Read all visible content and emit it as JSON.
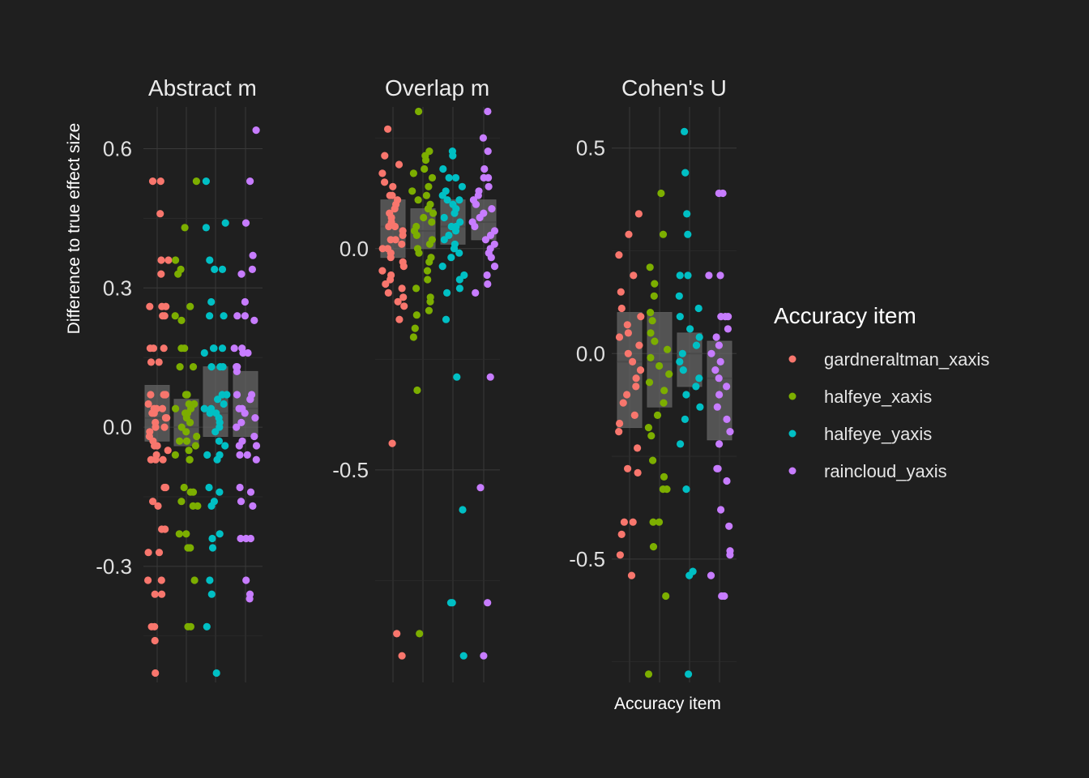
{
  "chart_data": {
    "type": "scatter",
    "subtype": "jittered points over boxplots, faceted",
    "background": "#1f1f1f",
    "grid": true,
    "x_title": "Accuracy item",
    "y_title": "Difference to true effect size",
    "legend": {
      "title": "Accuracy item",
      "position": "right",
      "entries": [
        {
          "label": "gardneraltman_xaxis",
          "color": "#F8766D"
        },
        {
          "label": "halfeye_xaxis",
          "color": "#7CAE00"
        },
        {
          "label": "halfeye_yaxis",
          "color": "#00BFC4"
        },
        {
          "label": "raincloud_yaxis",
          "color": "#C77CFF"
        }
      ]
    },
    "facets": [
      {
        "title": "Abstract m",
        "ylim": [
          -0.55,
          0.69
        ],
        "yticks": [
          -0.3,
          0.0,
          0.3,
          0.6
        ],
        "ytick_labels": [
          "-0.3",
          "0.0",
          "0.3",
          "0.6"
        ],
        "boxes": [
          {
            "series": "gardneraltman_xaxis",
            "q1": -0.03,
            "median": 0.02,
            "q3": 0.09
          },
          {
            "series": "halfeye_xaxis",
            "q1": -0.04,
            "median": 0.0,
            "q3": 0.06
          },
          {
            "series": "halfeye_yaxis",
            "q1": -0.02,
            "median": 0.03,
            "q3": 0.13
          },
          {
            "series": "raincloud_yaxis",
            "q1": -0.02,
            "median": 0.04,
            "q3": 0.12
          }
        ],
        "series": [
          {
            "name": "gardneraltman_xaxis",
            "values": [
              0.53,
              0.53,
              0.46,
              0.36,
              0.36,
              0.33,
              0.26,
              0.26,
              0.26,
              0.24,
              0.24,
              0.17,
              0.17,
              0.17,
              0.14,
              0.14,
              0.07,
              0.07,
              0.07,
              0.07,
              0.05,
              0.04,
              0.04,
              0.04,
              0.03,
              0.03,
              0.02,
              0.02,
              0.01,
              0.0,
              0.0,
              -0.01,
              -0.02,
              -0.03,
              -0.04,
              -0.04,
              -0.05,
              -0.06,
              -0.07,
              -0.07,
              -0.07,
              -0.13,
              -0.13,
              -0.16,
              -0.17,
              -0.22,
              -0.22,
              -0.27,
              -0.27,
              -0.33,
              -0.33,
              -0.36,
              -0.36,
              -0.43,
              -0.43,
              -0.46,
              -0.53
            ]
          },
          {
            "name": "halfeye_xaxis",
            "values": [
              0.53,
              0.43,
              0.36,
              0.34,
              0.33,
              0.26,
              0.24,
              0.23,
              0.17,
              0.17,
              0.13,
              0.13,
              0.07,
              0.07,
              0.05,
              0.05,
              0.04,
              0.04,
              0.03,
              0.03,
              0.02,
              0.01,
              0.0,
              -0.01,
              -0.02,
              -0.03,
              -0.03,
              -0.04,
              -0.05,
              -0.06,
              -0.07,
              -0.07,
              -0.13,
              -0.14,
              -0.14,
              -0.16,
              -0.17,
              -0.17,
              -0.23,
              -0.23,
              -0.26,
              -0.26,
              -0.33,
              -0.43,
              -0.43
            ]
          },
          {
            "name": "halfeye_yaxis",
            "values": [
              0.53,
              0.44,
              0.43,
              0.36,
              0.34,
              0.34,
              0.27,
              0.24,
              0.24,
              0.17,
              0.17,
              0.17,
              0.16,
              0.13,
              0.13,
              0.13,
              0.07,
              0.07,
              0.06,
              0.05,
              0.04,
              0.04,
              0.03,
              0.03,
              0.02,
              0.01,
              0.0,
              -0.01,
              -0.03,
              -0.04,
              -0.06,
              -0.06,
              -0.07,
              -0.13,
              -0.14,
              -0.16,
              -0.17,
              -0.23,
              -0.24,
              -0.26,
              -0.33,
              -0.36,
              -0.43,
              -0.53
            ]
          },
          {
            "name": "raincloud_yaxis",
            "values": [
              0.64,
              0.53,
              0.44,
              0.37,
              0.34,
              0.33,
              0.27,
              0.24,
              0.24,
              0.23,
              0.17,
              0.17,
              0.16,
              0.16,
              0.13,
              0.13,
              0.12,
              0.07,
              0.07,
              0.06,
              0.06,
              0.04,
              0.04,
              0.03,
              0.02,
              0.01,
              0.0,
              -0.02,
              -0.03,
              -0.04,
              -0.04,
              -0.06,
              -0.06,
              -0.07,
              -0.13,
              -0.14,
              -0.16,
              -0.17,
              -0.24,
              -0.24,
              -0.24,
              -0.33,
              -0.36,
              -0.37
            ]
          }
        ]
      },
      {
        "title": "Overlap m",
        "ylim": [
          -0.98,
          0.32
        ],
        "yticks": [
          -0.5,
          0.0
        ],
        "ytick_labels": [
          "-0.5",
          "0.0"
        ],
        "boxes": [
          {
            "series": "gardneraltman_xaxis",
            "q1": -0.02,
            "median": 0.05,
            "q3": 0.11
          },
          {
            "series": "halfeye_xaxis",
            "q1": 0.0,
            "median": 0.04,
            "q3": 0.09
          },
          {
            "series": "halfeye_yaxis",
            "q1": 0.01,
            "median": 0.05,
            "q3": 0.11
          },
          {
            "series": "raincloud_yaxis",
            "q1": 0.02,
            "median": 0.06,
            "q3": 0.11
          }
        ],
        "series": [
          {
            "name": "gardneraltman_xaxis",
            "values": [
              0.27,
              0.21,
              0.19,
              0.17,
              0.15,
              0.14,
              0.12,
              0.12,
              0.11,
              0.1,
              0.09,
              0.08,
              0.07,
              0.06,
              0.05,
              0.05,
              0.04,
              0.03,
              0.02,
              0.02,
              0.01,
              0.0,
              0.0,
              -0.01,
              -0.02,
              -0.03,
              -0.04,
              -0.05,
              -0.06,
              -0.07,
              -0.08,
              -0.09,
              -0.1,
              -0.11,
              -0.12,
              -0.13,
              -0.16,
              -0.44,
              -0.87,
              -0.92
            ]
          },
          {
            "name": "halfeye_xaxis",
            "values": [
              0.31,
              0.22,
              0.21,
              0.2,
              0.18,
              0.17,
              0.16,
              0.14,
              0.13,
              0.12,
              0.11,
              0.1,
              0.09,
              0.08,
              0.07,
              0.06,
              0.05,
              0.04,
              0.03,
              0.02,
              0.01,
              0.0,
              -0.01,
              -0.02,
              -0.03,
              -0.05,
              -0.07,
              -0.09,
              -0.11,
              -0.12,
              -0.14,
              -0.15,
              -0.18,
              -0.2,
              -0.32,
              -0.87
            ]
          },
          {
            "name": "halfeye_yaxis",
            "values": [
              0.22,
              0.21,
              0.18,
              0.16,
              0.16,
              0.14,
              0.13,
              0.12,
              0.11,
              0.11,
              0.1,
              0.09,
              0.08,
              0.07,
              0.06,
              0.05,
              0.05,
              0.04,
              0.03,
              0.02,
              0.01,
              0.0,
              -0.01,
              -0.02,
              -0.04,
              -0.06,
              -0.07,
              -0.09,
              -0.1,
              -0.16,
              -0.29,
              -0.59,
              -0.8,
              -0.8,
              -0.92
            ]
          },
          {
            "name": "raincloud_yaxis",
            "values": [
              0.31,
              0.25,
              0.22,
              0.18,
              0.16,
              0.16,
              0.14,
              0.13,
              0.12,
              0.11,
              0.1,
              0.09,
              0.08,
              0.07,
              0.06,
              0.05,
              0.04,
              0.03,
              0.02,
              0.01,
              0.0,
              -0.01,
              -0.02,
              -0.04,
              -0.06,
              -0.08,
              -0.1,
              -0.29,
              -0.54,
              -0.8,
              -0.92
            ]
          }
        ]
      },
      {
        "title": "Cohen's U",
        "ylim": [
          -0.8,
          0.6
        ],
        "yticks": [
          -0.5,
          0.0,
          0.5
        ],
        "ytick_labels": [
          "-0.5",
          "0.0",
          "0.5"
        ],
        "boxes": [
          {
            "series": "gardneraltman_xaxis",
            "q1": -0.18,
            "median": -0.02,
            "q3": 0.1
          },
          {
            "series": "halfeye_xaxis",
            "q1": -0.13,
            "median": -0.02,
            "q3": 0.1
          },
          {
            "series": "halfeye_yaxis",
            "q1": -0.08,
            "median": 0.0,
            "q3": 0.05
          },
          {
            "series": "raincloud_yaxis",
            "q1": -0.21,
            "median": -0.06,
            "q3": 0.03
          }
        ],
        "series": [
          {
            "name": "gardneraltman_xaxis",
            "values": [
              0.34,
              0.29,
              0.24,
              0.19,
              0.15,
              0.11,
              0.09,
              0.07,
              0.05,
              0.04,
              0.02,
              0.0,
              -0.02,
              -0.04,
              -0.06,
              -0.08,
              -0.1,
              -0.12,
              -0.15,
              -0.17,
              -0.19,
              -0.23,
              -0.28,
              -0.29,
              -0.41,
              -0.41,
              -0.44,
              -0.49,
              -0.54
            ]
          },
          {
            "name": "halfeye_xaxis",
            "values": [
              0.39,
              0.29,
              0.21,
              0.17,
              0.14,
              0.1,
              0.08,
              0.05,
              0.03,
              0.01,
              -0.01,
              -0.03,
              -0.05,
              -0.07,
              -0.09,
              -0.12,
              -0.15,
              -0.18,
              -0.2,
              -0.26,
              -0.3,
              -0.33,
              -0.33,
              -0.41,
              -0.41,
              -0.47,
              -0.59,
              -0.78
            ]
          },
          {
            "name": "halfeye_yaxis",
            "values": [
              0.54,
              0.44,
              0.34,
              0.29,
              0.19,
              0.19,
              0.14,
              0.11,
              0.09,
              0.06,
              0.04,
              0.02,
              0.0,
              -0.02,
              -0.04,
              -0.06,
              -0.08,
              -0.1,
              -0.13,
              -0.16,
              -0.22,
              -0.33,
              -0.53,
              -0.54,
              -0.78
            ]
          },
          {
            "name": "raincloud_yaxis",
            "values": [
              0.39,
              0.39,
              0.19,
              0.19,
              0.09,
              0.09,
              0.09,
              0.06,
              0.04,
              0.02,
              0.0,
              -0.02,
              -0.04,
              -0.06,
              -0.08,
              -0.1,
              -0.13,
              -0.16,
              -0.19,
              -0.22,
              -0.28,
              -0.28,
              -0.31,
              -0.38,
              -0.42,
              -0.48,
              -0.49,
              -0.54,
              -0.59,
              -0.59
            ]
          }
        ]
      }
    ]
  }
}
